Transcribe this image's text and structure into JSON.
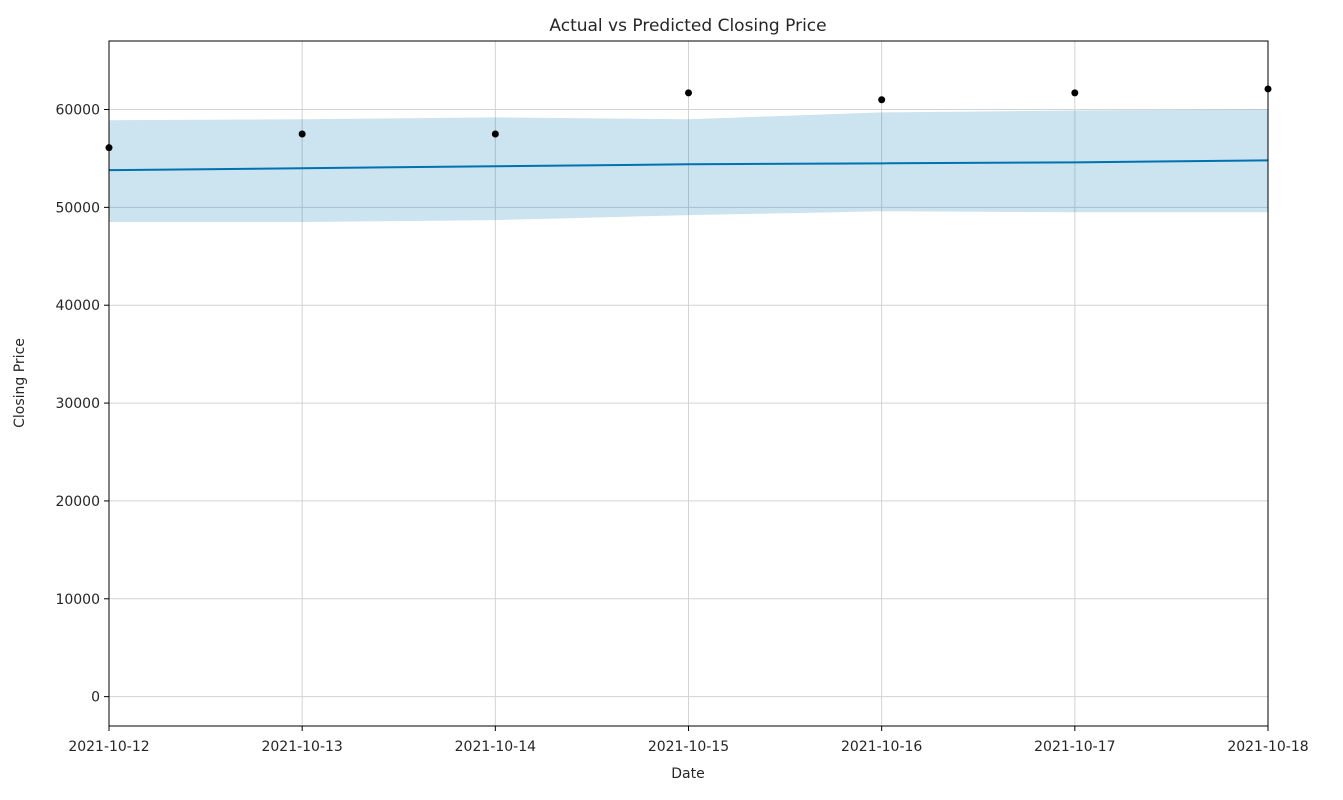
{
  "chart_data": {
    "type": "line",
    "title": "Actual vs Predicted Closing Price",
    "xlabel": "Date",
    "ylabel": "Closing Price",
    "x_ticks": [
      "2021-10-12",
      "2021-10-13",
      "2021-10-14",
      "2021-10-15",
      "2021-10-16",
      "2021-10-17",
      "2021-10-18"
    ],
    "y_ticks": [
      0,
      10000,
      20000,
      30000,
      40000,
      50000,
      60000
    ],
    "xlim": [
      "2021-10-12",
      "2021-10-18"
    ],
    "ylim": [
      -3000,
      67000
    ],
    "grid": true,
    "colors": {
      "forecast_line": "#0072B2",
      "uncertainty_band": "#0072B2",
      "actual_points": "#000000",
      "grid": "#d3d3d3"
    },
    "series": [
      {
        "kind": "actual",
        "style": "scatter",
        "x": [
          "2021-10-12",
          "2021-10-13",
          "2021-10-14",
          "2021-10-15",
          "2021-10-16",
          "2021-10-17",
          "2021-10-18"
        ],
        "y": [
          56100,
          57500,
          57500,
          61700,
          61000,
          61700,
          62100
        ]
      },
      {
        "kind": "predicted",
        "style": "line",
        "x": [
          "2021-10-12",
          "2021-10-13",
          "2021-10-14",
          "2021-10-15",
          "2021-10-16",
          "2021-10-17",
          "2021-10-18"
        ],
        "y": [
          53800,
          54000,
          54200,
          54400,
          54500,
          54600,
          54800
        ]
      },
      {
        "kind": "uncertainty-interval",
        "style": "band",
        "x": [
          "2021-10-12",
          "2021-10-13",
          "2021-10-14",
          "2021-10-15",
          "2021-10-16",
          "2021-10-17",
          "2021-10-18"
        ],
        "lower": [
          48500,
          48500,
          48700,
          49200,
          49600,
          49500,
          49500
        ],
        "upper": [
          58900,
          59000,
          59200,
          59000,
          59700,
          59900,
          60000
        ]
      }
    ]
  }
}
